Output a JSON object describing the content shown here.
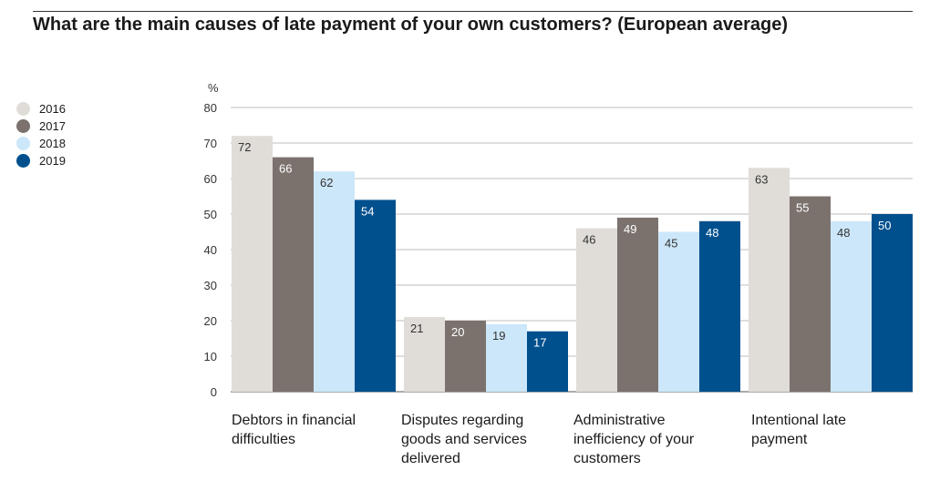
{
  "title": "What are the main causes of late payment of your own customers? (European average)",
  "chart_data": {
    "type": "bar",
    "title": "What are the main causes of late payment of your own customers? (European average)",
    "ylabel": "%",
    "ylim": [
      0,
      80
    ],
    "yticks": [
      0,
      10,
      20,
      30,
      40,
      50,
      60,
      70,
      80
    ],
    "grid": true,
    "legend_position": "left",
    "categories": [
      "Debtors in financial difficulties",
      "Disputes regarding goods and services delivered",
      "Administrative inefficiency of your customers",
      "Intentional late payment"
    ],
    "series": [
      {
        "name": "2016",
        "color": "#e0ddd8",
        "label_color": "#333333",
        "values": [
          72,
          21,
          46,
          63
        ]
      },
      {
        "name": "2017",
        "color": "#7b726e",
        "label_color": "#ffffff",
        "values": [
          66,
          20,
          49,
          55
        ]
      },
      {
        "name": "2018",
        "color": "#cce7f9",
        "label_color": "#333333",
        "values": [
          62,
          19,
          45,
          48
        ]
      },
      {
        "name": "2019",
        "color": "#00508e",
        "label_color": "#ffffff",
        "values": [
          54,
          17,
          48,
          50
        ]
      }
    ]
  },
  "category_label_lines": [
    [
      "Debtors in financial",
      "difficulties"
    ],
    [
      "Disputes regarding",
      "goods and services",
      "delivered"
    ],
    [
      "Administrative",
      "inefficiency of your",
      "customers"
    ],
    [
      "Intentional late",
      "payment"
    ]
  ]
}
